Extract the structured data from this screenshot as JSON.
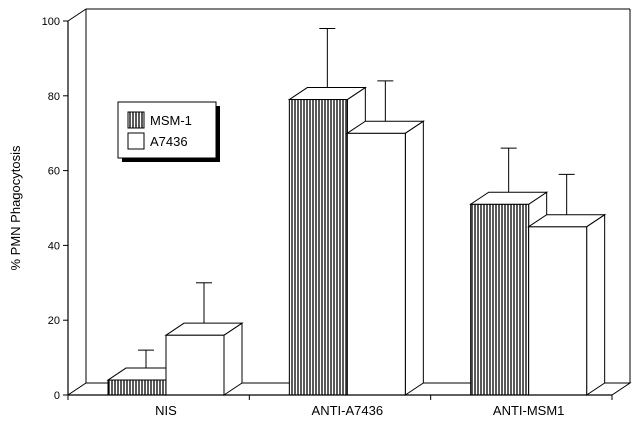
{
  "chart_data": {
    "type": "bar",
    "title": "",
    "xlabel": "",
    "ylabel": "% PMN Phagocytosis",
    "ylim": [
      0,
      100
    ],
    "yticks": [
      0,
      20,
      40,
      60,
      80,
      100
    ],
    "categories": [
      "NIS",
      "ANTI-A7436",
      "ANTI-MSM1"
    ],
    "series": [
      {
        "name": "MSM-1",
        "values": [
          4,
          79,
          51
        ],
        "error": [
          8,
          19,
          15
        ],
        "fill": "vertical-hatch"
      },
      {
        "name": "A7436",
        "values": [
          16,
          70,
          45
        ],
        "error": [
          14,
          14,
          14
        ],
        "fill": "white"
      }
    ],
    "grid": false,
    "legend_position": "upper-left",
    "style": "3d-bars"
  }
}
